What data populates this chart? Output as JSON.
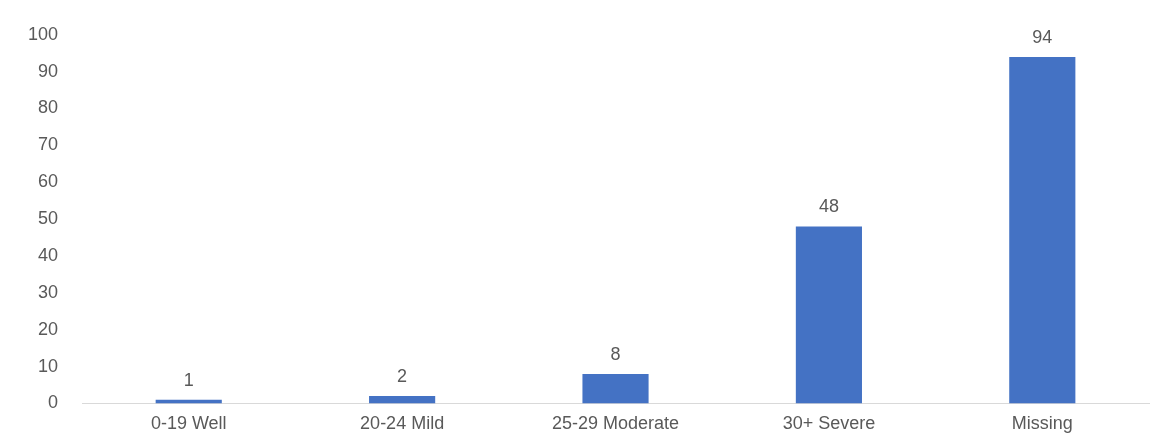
{
  "chart_data": {
    "type": "bar",
    "categories": [
      "0-19 Well",
      "20-24 Mild",
      "25-29 Moderate",
      "30+ Severe",
      "Missing"
    ],
    "values": [
      1,
      2,
      8,
      48,
      94
    ],
    "color": "#4472c4",
    "ylim": [
      0,
      100
    ],
    "yticks": [
      0,
      10,
      20,
      30,
      40,
      50,
      60,
      70,
      80,
      90,
      100
    ],
    "grid": false,
    "data_labels": true
  }
}
